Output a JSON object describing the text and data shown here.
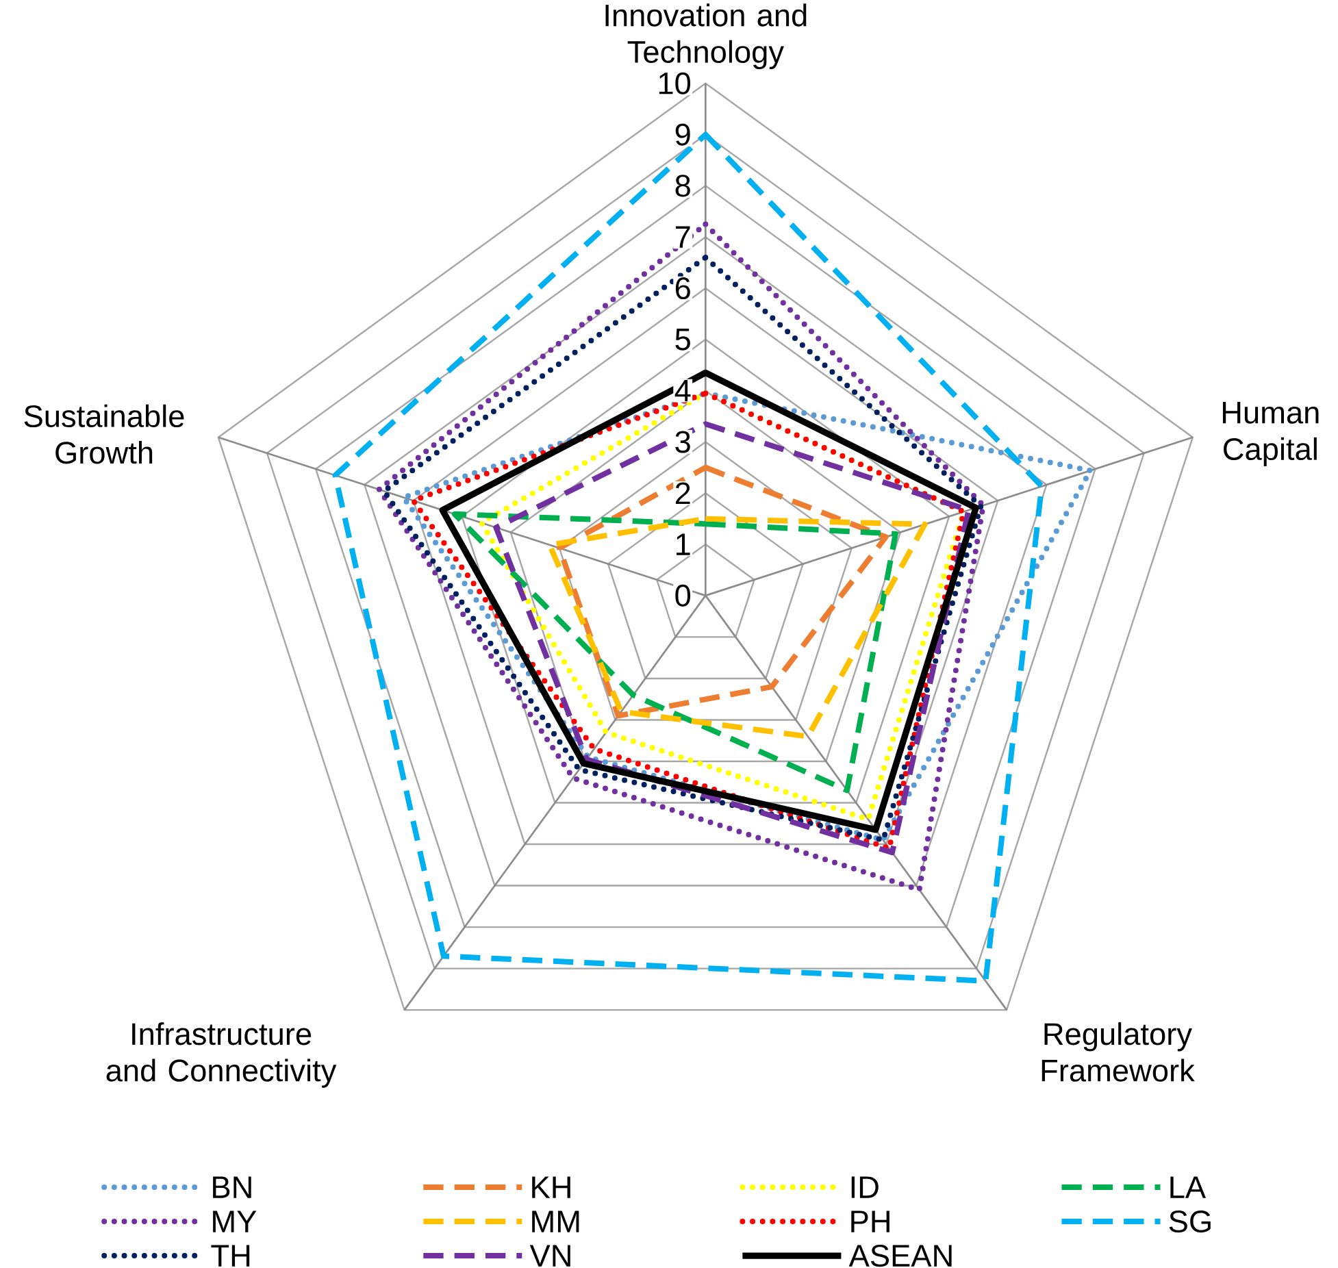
{
  "chart_data": {
    "type": "radar",
    "categories": [
      "Innovation and Technology",
      "Human Capital",
      "Regulatory Framework",
      "Infrastructure and Connectivity",
      "Sustainable Growth"
    ],
    "ylim": [
      0,
      10
    ],
    "yticks": [
      0,
      1,
      2,
      3,
      4,
      5,
      6,
      7,
      8,
      9,
      10
    ],
    "grid": true,
    "legend": "bottom",
    "series": [
      {
        "name": "BN",
        "color": "#5b9bd5",
        "line_style": "dotted",
        "values": [
          3.95,
          7.9,
          5.9,
          3.9,
          6.2
        ]
      },
      {
        "name": "KH",
        "color": "#ed7d31",
        "line_style": "dashed",
        "values": [
          2.5,
          3.7,
          2.2,
          2.9,
          3.0
        ]
      },
      {
        "name": "ID",
        "color": "#ffff00",
        "line_style": "dotted",
        "values": [
          3.95,
          5.3,
          5.4,
          3.3,
          4.6
        ]
      },
      {
        "name": "LA",
        "color": "#00b050",
        "line_style": "dashed",
        "values": [
          1.4,
          3.9,
          4.7,
          2.4,
          5.15
        ]
      },
      {
        "name": "MY",
        "color": "#7030a0",
        "line_style": "dotted",
        "values": [
          7.25,
          5.7,
          7.1,
          4.4,
          6.7
        ]
      },
      {
        "name": "MM",
        "color": "#ffc000",
        "line_style": "dashed",
        "values": [
          1.5,
          4.5,
          3.4,
          2.8,
          3.2
        ]
      },
      {
        "name": "PH",
        "color": "#ff0000",
        "line_style": "dotted",
        "values": [
          3.95,
          5.3,
          6.1,
          3.7,
          6.0
        ]
      },
      {
        "name": "SG",
        "color": "#00b0f0",
        "line_style": "dashed",
        "values": [
          9.0,
          6.9,
          9.3,
          8.7,
          7.6
        ]
      },
      {
        "name": "TH",
        "color": "#002060",
        "line_style": "dotted",
        "values": [
          6.6,
          5.65,
          5.9,
          4.2,
          6.6
        ]
      },
      {
        "name": "VN",
        "color": "#7030a0",
        "line_style": "dashed",
        "values": [
          3.35,
          5.4,
          6.2,
          3.95,
          4.3
        ]
      },
      {
        "name": "ASEAN",
        "color": "#000000",
        "line_style": "solid",
        "values": [
          4.35,
          5.55,
          5.65,
          4.05,
          5.4
        ]
      }
    ]
  }
}
